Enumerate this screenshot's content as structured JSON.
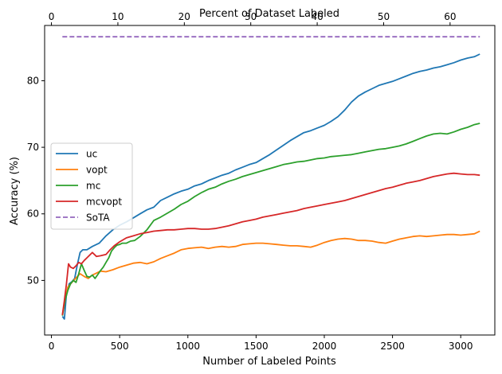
{
  "chart_data": {
    "type": "line",
    "xlabel": "Number of Labeled Points",
    "ylabel": "Accuracy (%)",
    "top_xlabel": "Percent of Dataset Labeled",
    "xlim": [
      -50,
      3250
    ],
    "ylim": [
      41.8,
      88.3
    ],
    "x_ticks": [
      0,
      500,
      1000,
      1500,
      2000,
      2500,
      3000
    ],
    "y_ticks": [
      50,
      60,
      70,
      80
    ],
    "top_x_ticks": [
      0,
      10,
      20,
      30,
      40,
      50,
      60
    ],
    "top_x_scale_points_per_percent": 48.7,
    "grid": false,
    "legend_position": "center-left",
    "series": [
      {
        "name": "uc",
        "color": "#1f77b4",
        "style": "solid",
        "points": [
          [
            80,
            44.6
          ],
          [
            95,
            44.2
          ],
          [
            110,
            48
          ],
          [
            130,
            49.5
          ],
          [
            150,
            49.8
          ],
          [
            170,
            50.3
          ],
          [
            190,
            52.4
          ],
          [
            210,
            54.2
          ],
          [
            230,
            54.6
          ],
          [
            260,
            54.6
          ],
          [
            300,
            55.1
          ],
          [
            350,
            55.6
          ],
          [
            400,
            56.7
          ],
          [
            450,
            57.6
          ],
          [
            500,
            58.3
          ],
          [
            550,
            58.8
          ],
          [
            600,
            59.4
          ],
          [
            650,
            60
          ],
          [
            700,
            60.6
          ],
          [
            750,
            61
          ],
          [
            800,
            62
          ],
          [
            850,
            62.5
          ],
          [
            900,
            63
          ],
          [
            950,
            63.4
          ],
          [
            1000,
            63.7
          ],
          [
            1050,
            64.2
          ],
          [
            1100,
            64.5
          ],
          [
            1150,
            65
          ],
          [
            1200,
            65.4
          ],
          [
            1250,
            65.8
          ],
          [
            1300,
            66.1
          ],
          [
            1350,
            66.6
          ],
          [
            1400,
            67
          ],
          [
            1450,
            67.4
          ],
          [
            1500,
            67.7
          ],
          [
            1550,
            68.3
          ],
          [
            1600,
            68.9
          ],
          [
            1650,
            69.6
          ],
          [
            1700,
            70.3
          ],
          [
            1750,
            71
          ],
          [
            1800,
            71.6
          ],
          [
            1850,
            72.2
          ],
          [
            1900,
            72.5
          ],
          [
            1950,
            72.9
          ],
          [
            2000,
            73.3
          ],
          [
            2050,
            73.9
          ],
          [
            2100,
            74.6
          ],
          [
            2150,
            75.6
          ],
          [
            2200,
            76.8
          ],
          [
            2250,
            77.7
          ],
          [
            2300,
            78.3
          ],
          [
            2350,
            78.8
          ],
          [
            2400,
            79.3
          ],
          [
            2450,
            79.6
          ],
          [
            2500,
            79.9
          ],
          [
            2550,
            80.3
          ],
          [
            2600,
            80.7
          ],
          [
            2650,
            81.1
          ],
          [
            2700,
            81.4
          ],
          [
            2750,
            81.6
          ],
          [
            2800,
            81.9
          ],
          [
            2850,
            82.1
          ],
          [
            2900,
            82.4
          ],
          [
            2950,
            82.7
          ],
          [
            3000,
            83.1
          ],
          [
            3050,
            83.4
          ],
          [
            3100,
            83.6
          ],
          [
            3140,
            84
          ]
        ]
      },
      {
        "name": "vopt",
        "color": "#ff7f0e",
        "style": "solid",
        "points": [
          [
            80,
            44.8
          ],
          [
            100,
            47
          ],
          [
            120,
            49
          ],
          [
            150,
            49.7
          ],
          [
            180,
            50.4
          ],
          [
            210,
            51
          ],
          [
            240,
            50.6
          ],
          [
            270,
            50.3
          ],
          [
            300,
            50.8
          ],
          [
            330,
            51.1
          ],
          [
            360,
            51.4
          ],
          [
            400,
            51.3
          ],
          [
            450,
            51.6
          ],
          [
            500,
            52
          ],
          [
            550,
            52.3
          ],
          [
            600,
            52.6
          ],
          [
            650,
            52.7
          ],
          [
            700,
            52.5
          ],
          [
            750,
            52.8
          ],
          [
            800,
            53.3
          ],
          [
            850,
            53.7
          ],
          [
            900,
            54.1
          ],
          [
            950,
            54.6
          ],
          [
            1000,
            54.8
          ],
          [
            1050,
            54.9
          ],
          [
            1100,
            55
          ],
          [
            1150,
            54.8
          ],
          [
            1200,
            55
          ],
          [
            1250,
            55.1
          ],
          [
            1300,
            55
          ],
          [
            1350,
            55.1
          ],
          [
            1400,
            55.4
          ],
          [
            1450,
            55.5
          ],
          [
            1500,
            55.6
          ],
          [
            1550,
            55.6
          ],
          [
            1600,
            55.5
          ],
          [
            1650,
            55.4
          ],
          [
            1700,
            55.3
          ],
          [
            1750,
            55.2
          ],
          [
            1800,
            55.2
          ],
          [
            1850,
            55.1
          ],
          [
            1900,
            55
          ],
          [
            1950,
            55.3
          ],
          [
            2000,
            55.7
          ],
          [
            2050,
            56
          ],
          [
            2100,
            56.2
          ],
          [
            2150,
            56.3
          ],
          [
            2200,
            56.2
          ],
          [
            2250,
            56
          ],
          [
            2300,
            56
          ],
          [
            2350,
            55.9
          ],
          [
            2400,
            55.7
          ],
          [
            2450,
            55.6
          ],
          [
            2500,
            55.9
          ],
          [
            2550,
            56.2
          ],
          [
            2600,
            56.4
          ],
          [
            2650,
            56.6
          ],
          [
            2700,
            56.7
          ],
          [
            2750,
            56.6
          ],
          [
            2800,
            56.7
          ],
          [
            2850,
            56.8
          ],
          [
            2900,
            56.9
          ],
          [
            2950,
            56.9
          ],
          [
            3000,
            56.8
          ],
          [
            3050,
            56.9
          ],
          [
            3100,
            57
          ],
          [
            3140,
            57.4
          ]
        ]
      },
      {
        "name": "mc",
        "color": "#2ca02c",
        "style": "solid",
        "points": [
          [
            80,
            44.7
          ],
          [
            100,
            47
          ],
          [
            120,
            48.5
          ],
          [
            140,
            49.5
          ],
          [
            160,
            50
          ],
          [
            180,
            49.7
          ],
          [
            200,
            51
          ],
          [
            220,
            52.5
          ],
          [
            240,
            51.5
          ],
          [
            260,
            50.6
          ],
          [
            280,
            50.5
          ],
          [
            300,
            50.8
          ],
          [
            320,
            50.3
          ],
          [
            340,
            50.9
          ],
          [
            360,
            51.5
          ],
          [
            380,
            52
          ],
          [
            400,
            52.7
          ],
          [
            420,
            53.4
          ],
          [
            440,
            54.4
          ],
          [
            460,
            54.9
          ],
          [
            480,
            55.3
          ],
          [
            500,
            55.4
          ],
          [
            520,
            55.6
          ],
          [
            550,
            55.6
          ],
          [
            580,
            55.9
          ],
          [
            610,
            56
          ],
          [
            650,
            56.6
          ],
          [
            700,
            57.6
          ],
          [
            750,
            59
          ],
          [
            800,
            59.5
          ],
          [
            850,
            60.1
          ],
          [
            900,
            60.7
          ],
          [
            950,
            61.4
          ],
          [
            1000,
            61.9
          ],
          [
            1050,
            62.6
          ],
          [
            1100,
            63.2
          ],
          [
            1150,
            63.7
          ],
          [
            1200,
            64
          ],
          [
            1250,
            64.5
          ],
          [
            1300,
            64.9
          ],
          [
            1350,
            65.2
          ],
          [
            1400,
            65.6
          ],
          [
            1450,
            65.9
          ],
          [
            1500,
            66.2
          ],
          [
            1550,
            66.5
          ],
          [
            1600,
            66.8
          ],
          [
            1650,
            67.1
          ],
          [
            1700,
            67.4
          ],
          [
            1750,
            67.6
          ],
          [
            1800,
            67.8
          ],
          [
            1850,
            67.9
          ],
          [
            1900,
            68.1
          ],
          [
            1950,
            68.3
          ],
          [
            2000,
            68.4
          ],
          [
            2050,
            68.6
          ],
          [
            2100,
            68.7
          ],
          [
            2150,
            68.8
          ],
          [
            2200,
            68.9
          ],
          [
            2250,
            69.1
          ],
          [
            2300,
            69.3
          ],
          [
            2350,
            69.5
          ],
          [
            2400,
            69.7
          ],
          [
            2450,
            69.8
          ],
          [
            2500,
            70
          ],
          [
            2550,
            70.2
          ],
          [
            2600,
            70.5
          ],
          [
            2650,
            70.9
          ],
          [
            2700,
            71.3
          ],
          [
            2750,
            71.7
          ],
          [
            2800,
            72
          ],
          [
            2850,
            72.1
          ],
          [
            2900,
            72
          ],
          [
            2950,
            72.3
          ],
          [
            3000,
            72.7
          ],
          [
            3050,
            73
          ],
          [
            3100,
            73.4
          ],
          [
            3140,
            73.6
          ]
        ]
      },
      {
        "name": "mcvopt",
        "color": "#d62728",
        "style": "solid",
        "points": [
          [
            80,
            44.8
          ],
          [
            95,
            47
          ],
          [
            110,
            49.5
          ],
          [
            125,
            52.5
          ],
          [
            140,
            52
          ],
          [
            160,
            51.8
          ],
          [
            180,
            52.2
          ],
          [
            200,
            52.7
          ],
          [
            220,
            52.5
          ],
          [
            240,
            53
          ],
          [
            260,
            53.4
          ],
          [
            280,
            53.8
          ],
          [
            300,
            54.2
          ],
          [
            330,
            53.6
          ],
          [
            360,
            53.7
          ],
          [
            400,
            53.9
          ],
          [
            430,
            54.6
          ],
          [
            460,
            55.2
          ],
          [
            500,
            55.8
          ],
          [
            550,
            56.4
          ],
          [
            600,
            56.7
          ],
          [
            650,
            57
          ],
          [
            700,
            57.2
          ],
          [
            750,
            57.4
          ],
          [
            800,
            57.5
          ],
          [
            850,
            57.6
          ],
          [
            900,
            57.6
          ],
          [
            950,
            57.7
          ],
          [
            1000,
            57.8
          ],
          [
            1050,
            57.8
          ],
          [
            1100,
            57.7
          ],
          [
            1150,
            57.7
          ],
          [
            1200,
            57.8
          ],
          [
            1250,
            58
          ],
          [
            1300,
            58.2
          ],
          [
            1350,
            58.5
          ],
          [
            1400,
            58.8
          ],
          [
            1450,
            59
          ],
          [
            1500,
            59.2
          ],
          [
            1550,
            59.5
          ],
          [
            1600,
            59.7
          ],
          [
            1650,
            59.9
          ],
          [
            1700,
            60.1
          ],
          [
            1750,
            60.3
          ],
          [
            1800,
            60.5
          ],
          [
            1850,
            60.8
          ],
          [
            1900,
            61
          ],
          [
            1950,
            61.2
          ],
          [
            2000,
            61.4
          ],
          [
            2050,
            61.6
          ],
          [
            2100,
            61.8
          ],
          [
            2150,
            62
          ],
          [
            2200,
            62.3
          ],
          [
            2250,
            62.6
          ],
          [
            2300,
            62.9
          ],
          [
            2350,
            63.2
          ],
          [
            2400,
            63.5
          ],
          [
            2450,
            63.8
          ],
          [
            2500,
            64
          ],
          [
            2550,
            64.3
          ],
          [
            2600,
            64.6
          ],
          [
            2650,
            64.8
          ],
          [
            2700,
            65
          ],
          [
            2750,
            65.3
          ],
          [
            2800,
            65.6
          ],
          [
            2850,
            65.8
          ],
          [
            2900,
            66
          ],
          [
            2950,
            66.1
          ],
          [
            3000,
            66
          ],
          [
            3050,
            65.9
          ],
          [
            3100,
            65.9
          ],
          [
            3140,
            65.8
          ]
        ]
      },
      {
        "name": "SoTA",
        "color": "#9467bd",
        "style": "dashed",
        "points": [
          [
            80,
            86.6
          ],
          [
            3140,
            86.6
          ]
        ]
      }
    ]
  }
}
